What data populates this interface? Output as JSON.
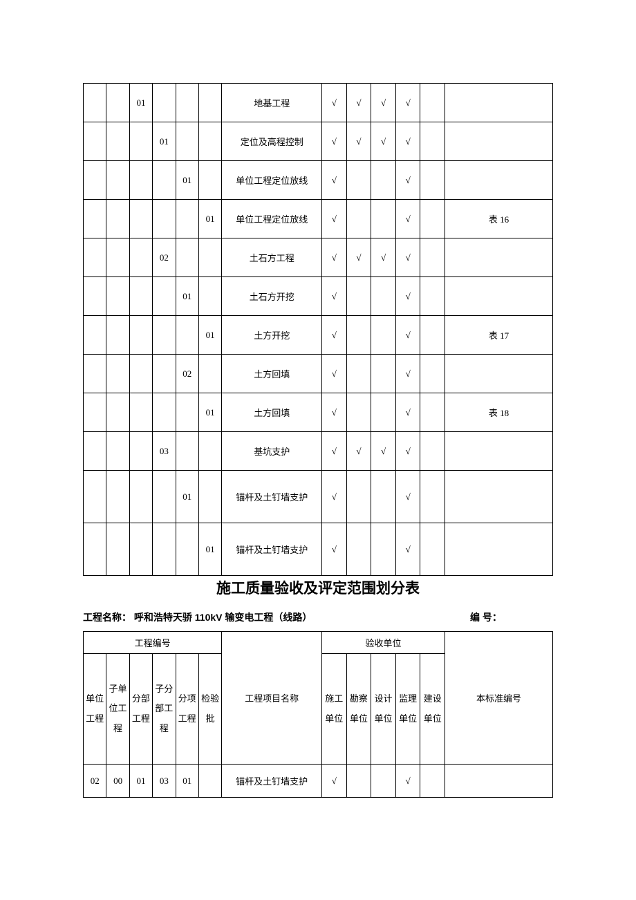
{
  "check": "√",
  "table1": {
    "rows": [
      {
        "c": [
          "",
          "",
          "01",
          "",
          "",
          "",
          "地基工程",
          "√",
          "√",
          "√",
          "√",
          "",
          ""
        ]
      },
      {
        "c": [
          "",
          "",
          "",
          "01",
          "",
          "",
          "定位及高程控制",
          "√",
          "√",
          "√",
          "√",
          "",
          ""
        ]
      },
      {
        "c": [
          "",
          "",
          "",
          "",
          "01",
          "",
          "单位工程定位放线",
          "√",
          "",
          "",
          "√",
          "",
          ""
        ]
      },
      {
        "c": [
          "",
          "",
          "",
          "",
          "",
          "01",
          "单位工程定位放线",
          "√",
          "",
          "",
          "√",
          "",
          "表 16"
        ]
      },
      {
        "c": [
          "",
          "",
          "",
          "02",
          "",
          "",
          "土石方工程",
          "√",
          "√",
          "√",
          "√",
          "",
          ""
        ]
      },
      {
        "c": [
          "",
          "",
          "",
          "",
          "01",
          "",
          "土石方开挖",
          "√",
          "",
          "",
          "√",
          "",
          ""
        ]
      },
      {
        "c": [
          "",
          "",
          "",
          "",
          "",
          "01",
          "土方开挖",
          "√",
          "",
          "",
          "√",
          "",
          "表 17"
        ]
      },
      {
        "c": [
          "",
          "",
          "",
          "",
          "02",
          "",
          "土方回填",
          "√",
          "",
          "",
          "√",
          "",
          ""
        ]
      },
      {
        "c": [
          "",
          "",
          "",
          "",
          "",
          "01",
          "土方回填",
          "√",
          "",
          "",
          "√",
          "",
          "表 18"
        ]
      },
      {
        "c": [
          "",
          "",
          "",
          "03",
          "",
          "",
          "基坑支护",
          "√",
          "√",
          "√",
          "√",
          "",
          ""
        ]
      },
      {
        "c": [
          "",
          "",
          "",
          "",
          "01",
          "",
          "锚杆及土钉墙支护",
          "√",
          "",
          "",
          "√",
          "",
          ""
        ],
        "tall": true
      },
      {
        "c": [
          "",
          "",
          "",
          "",
          "",
          "01",
          "锚杆及土钉墙支护",
          "√",
          "",
          "",
          "√",
          "",
          ""
        ],
        "tall": true
      }
    ]
  },
  "title": "施工质量验收及评定范围划分表",
  "project": {
    "label": "工程名称：",
    "name": "呼和浩特天骄 110kV 输变电工程（线路）",
    "codeLabel": "编  号："
  },
  "table2": {
    "header1": {
      "col1": "工程编号",
      "col2": "",
      "col3": "验收单位",
      "col4": ""
    },
    "header2": {
      "h1": "单位工程",
      "h2": "子单位工程",
      "h3": "分部工程",
      "h4": "子分部工程",
      "h5": "分项工程",
      "h6": "检验批",
      "h7": "工程项目名称",
      "h8": "施工单位",
      "h9": "勘察单位",
      "h10": "设计单位",
      "h11": "监理单位",
      "h12": "建设单位",
      "h13": "本标准编号"
    },
    "row": {
      "c": [
        "02",
        "00",
        "01",
        "03",
        "01",
        "",
        "锚杆及土钉墙支护",
        "√",
        "",
        "",
        "√",
        "",
        ""
      ]
    }
  },
  "style": {
    "border_color": "#000000",
    "background_color": "#ffffff",
    "font_size_cell": 13,
    "font_size_title": 21,
    "font_size_project": 14
  }
}
